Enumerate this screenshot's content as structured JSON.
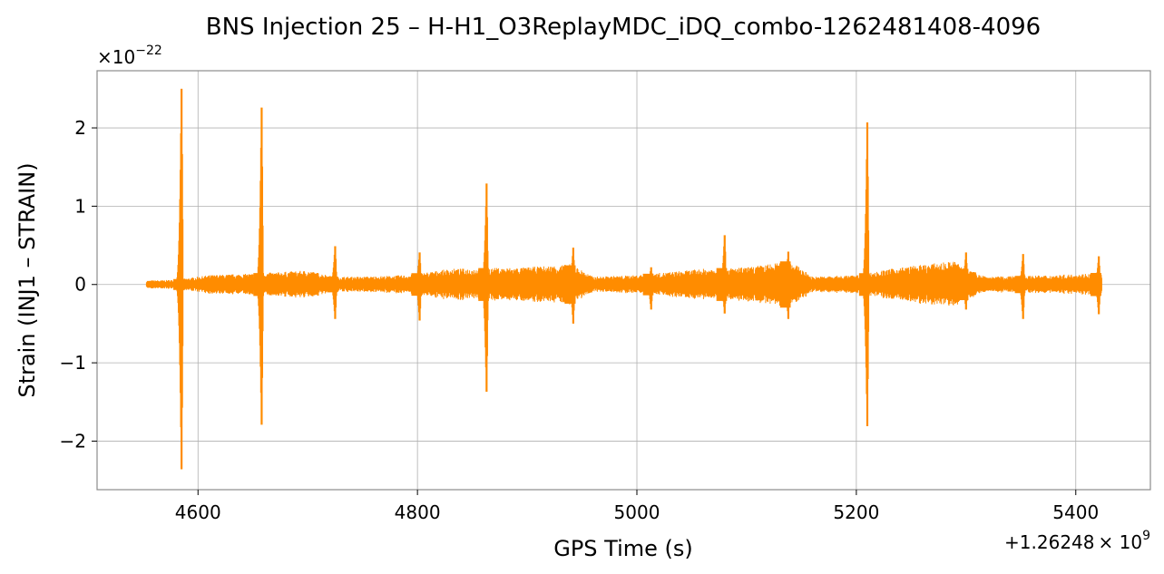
{
  "chart_data": {
    "type": "line",
    "title": "BNS Injection 25 – H-H1_O3ReplayMDC_iDQ_combo-1262481408-4096",
    "xlabel": "GPS Time (s)",
    "ylabel": "Strain (INJ1 – STRAIN)",
    "x_offset_label": "+1.26248",
    "x_offset_multiplier": "× 10",
    "x_offset_exponent": "9",
    "y_scale_prefix": "×10",
    "y_scale_exponent": "−22",
    "x_ticks": [
      4600,
      4800,
      5000,
      5200,
      5400
    ],
    "x_tick_labels": [
      "4600",
      "4800",
      "5000",
      "5200",
      "5400"
    ],
    "y_ticks": [
      -2,
      -1,
      0,
      1,
      2
    ],
    "y_tick_labels": [
      "−2",
      "−1",
      "0",
      "1",
      "2"
    ],
    "xlim": [
      4508,
      4688
    ],
    "xlim_note": "",
    "x_range": [
      4508,
      5468
    ],
    "y_range": [
      -2.62,
      2.73
    ],
    "grid": true,
    "line_color": "#ff8c00",
    "series": [
      {
        "name": "",
        "x_start": 4553,
        "x_end": 5424,
        "baseline_envelope": [
          {
            "x": 4553,
            "amp": 0.05
          },
          {
            "x": 4580,
            "amp": 0.06
          },
          {
            "x": 4610,
            "amp": 0.12
          },
          {
            "x": 4650,
            "amp": 0.14
          },
          {
            "x": 4700,
            "amp": 0.18
          },
          {
            "x": 4725,
            "amp": 0.1
          },
          {
            "x": 4750,
            "amp": 0.1
          },
          {
            "x": 4790,
            "amp": 0.12
          },
          {
            "x": 4830,
            "amp": 0.2
          },
          {
            "x": 4900,
            "amp": 0.22
          },
          {
            "x": 4940,
            "amp": 0.26
          },
          {
            "x": 4960,
            "amp": 0.1
          },
          {
            "x": 5000,
            "amp": 0.12
          },
          {
            "x": 5060,
            "amp": 0.2
          },
          {
            "x": 5100,
            "amp": 0.22
          },
          {
            "x": 5140,
            "amp": 0.3
          },
          {
            "x": 5160,
            "amp": 0.1
          },
          {
            "x": 5200,
            "amp": 0.12
          },
          {
            "x": 5240,
            "amp": 0.22
          },
          {
            "x": 5290,
            "amp": 0.3
          },
          {
            "x": 5300,
            "amp": 0.2
          },
          {
            "x": 5320,
            "amp": 0.1
          },
          {
            "x": 5380,
            "amp": 0.12
          },
          {
            "x": 5424,
            "amp": 0.15
          }
        ],
        "spikes": [
          {
            "x": 4585,
            "max": 2.5,
            "min": -2.36
          },
          {
            "x": 4658,
            "max": 2.26,
            "min": -1.79
          },
          {
            "x": 4725,
            "max": 0.49,
            "min": -0.44
          },
          {
            "x": 4802,
            "max": 0.41,
            "min": -0.46
          },
          {
            "x": 4863,
            "max": 1.29,
            "min": -1.37
          },
          {
            "x": 4942,
            "max": 0.47,
            "min": -0.5
          },
          {
            "x": 5013,
            "max": 0.22,
            "min": -0.32
          },
          {
            "x": 5080,
            "max": 0.63,
            "min": -0.37
          },
          {
            "x": 5138,
            "max": 0.42,
            "min": -0.44
          },
          {
            "x": 5210,
            "max": 2.07,
            "min": -1.81
          },
          {
            "x": 5300,
            "max": 0.41,
            "min": -0.32
          },
          {
            "x": 5352,
            "max": 0.39,
            "min": -0.44
          },
          {
            "x": 5421,
            "max": 0.36,
            "min": -0.38
          }
        ]
      }
    ]
  }
}
